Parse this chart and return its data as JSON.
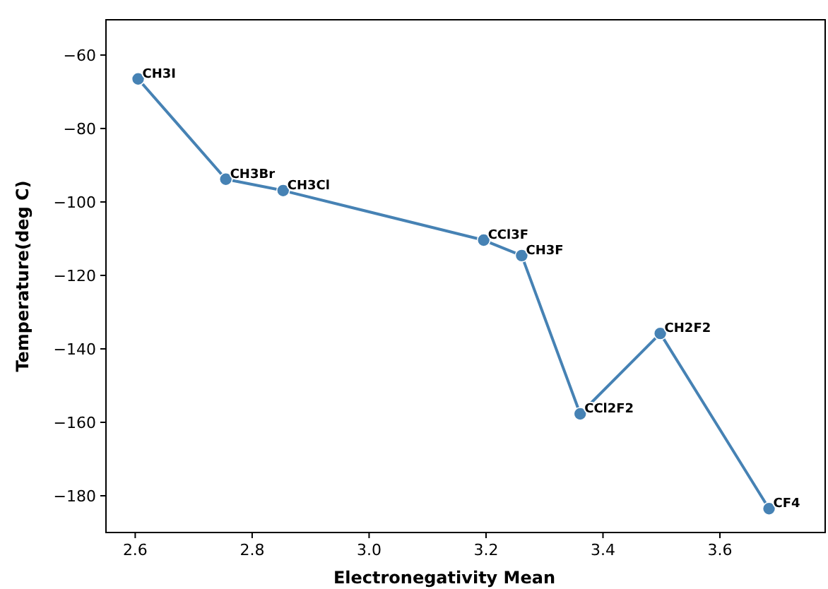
{
  "chart_data": {
    "type": "line",
    "xlabel": "Electronegativity Mean",
    "ylabel": "Temperature(deg C)",
    "x": [
      2.605,
      2.755,
      2.853,
      3.196,
      3.261,
      3.361,
      3.498,
      3.684
    ],
    "series": [
      {
        "color": "#4682b4",
        "values": [
          -66.5,
          -93.8,
          -96.9,
          -110.4,
          -114.6,
          -157.7,
          -135.8,
          -183.5
        ]
      }
    ],
    "marker": "circle",
    "line_style": "solid",
    "grid": false,
    "xlim": [
      2.55,
      3.78
    ],
    "xticks": [
      {
        "value": 2.6,
        "label": "2.6"
      },
      {
        "value": 2.8,
        "label": "2.8"
      },
      {
        "value": 3,
        "label": "3.0"
      },
      {
        "value": 3.2,
        "label": "3.2"
      },
      {
        "value": 3.4,
        "label": "3.4"
      },
      {
        "value": 3.6,
        "label": "3.6"
      }
    ],
    "ylim": [
      -190,
      -50.4
    ],
    "yticks": [
      -60,
      -80,
      -100,
      -120,
      -140,
      -160,
      -180
    ],
    "annotations": [
      {
        "text": "CH3I",
        "x": 2.605,
        "y": -66.5
      },
      {
        "text": "CH3Br",
        "x": 2.755,
        "y": -93.8
      },
      {
        "text": "CH3Cl",
        "x": 2.853,
        "y": -96.9
      },
      {
        "text": "CCl3F",
        "x": 3.196,
        "y": -110.4
      },
      {
        "text": "CH3F",
        "x": 3.261,
        "y": -114.6
      },
      {
        "text": "CCl2F2",
        "x": 3.361,
        "y": -157.7
      },
      {
        "text": "CH2F2",
        "x": 3.498,
        "y": -135.8
      },
      {
        "text": "CF4",
        "x": 3.684,
        "y": -183.5
      }
    ]
  }
}
